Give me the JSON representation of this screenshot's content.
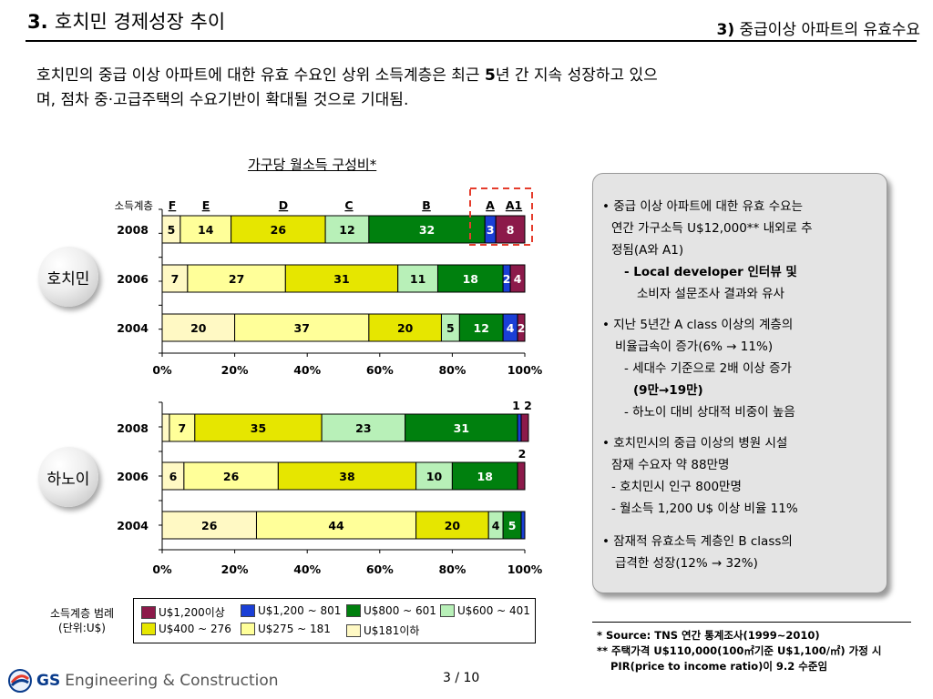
{
  "header": {
    "number": "3.",
    "title": "호치민 경제성장 추이",
    "section_number": "3)",
    "section_title": "중급이상 아파트의 유효수요"
  },
  "headline": {
    "line1_a": "호치민의 중급 이상 아파트에 대한 유효 수요인 상위 소득계층은 최근 ",
    "line1_num": "5",
    "line1_b": "년 간 지속 성장하고 있으",
    "line2": "며, 점차 중·고급주택의 수요기반이 확대될 것으로 기대됨."
  },
  "chart_title": "가구당 월소득 구성비*",
  "income_class_label": "소득계층",
  "class_letters": [
    "F",
    "E",
    "D",
    "C",
    "B",
    "A",
    "A1"
  ],
  "cities": [
    "호치민",
    "하노이"
  ],
  "colors": {
    "F": "#fff9c4",
    "E": "#ffff99",
    "D": "#e6e600",
    "C": "#b8f0b8",
    "B": "#00800e",
    "A": "#1a3fd6",
    "A1": "#8c1a4a",
    "highlight": "#e53c2c"
  },
  "chart_data": [
    {
      "type": "bar",
      "orientation": "horizontal",
      "stacked": true,
      "title": "호치민",
      "categories": [
        "2008",
        "2006",
        "2004"
      ],
      "series": [
        {
          "name": "F",
          "values": [
            5,
            7,
            20
          ]
        },
        {
          "name": "E",
          "values": [
            14,
            27,
            37
          ]
        },
        {
          "name": "D",
          "values": [
            26,
            31,
            20
          ]
        },
        {
          "name": "C",
          "values": [
            12,
            11,
            5
          ]
        },
        {
          "name": "B",
          "values": [
            32,
            18,
            12
          ]
        },
        {
          "name": "A",
          "values": [
            3,
            2,
            4
          ]
        },
        {
          "name": "A1",
          "values": [
            8,
            4,
            2
          ]
        }
      ],
      "xlim": [
        0,
        100
      ],
      "xticks": [
        "0%",
        "20%",
        "40%",
        "60%",
        "80%",
        "100%"
      ]
    },
    {
      "type": "bar",
      "orientation": "horizontal",
      "stacked": true,
      "title": "하노이",
      "categories": [
        "2008",
        "2006",
        "2004"
      ],
      "series": [
        {
          "name": "F",
          "values": [
            2,
            6,
            26
          ]
        },
        {
          "name": "E",
          "values": [
            7,
            26,
            44
          ]
        },
        {
          "name": "D",
          "values": [
            35,
            38,
            20
          ]
        },
        {
          "name": "C",
          "values": [
            23,
            10,
            4
          ]
        },
        {
          "name": "B",
          "values": [
            31,
            18,
            5
          ]
        },
        {
          "name": "A",
          "values": [
            1,
            0,
            1
          ]
        },
        {
          "name": "A1",
          "values": [
            2,
            2,
            0
          ]
        }
      ],
      "value_labels": [
        [
          "",
          "7",
          "35",
          "23",
          "31",
          "",
          ""
        ],
        [
          "6",
          "26",
          "38",
          "10",
          "18",
          "",
          ""
        ],
        [
          "26",
          "44",
          "20",
          "4",
          "5",
          "",
          ""
        ]
      ],
      "annotations": [
        {
          "row": "2008",
          "text": "1 2"
        },
        {
          "row": "2006",
          "text": "2"
        }
      ],
      "xlim": [
        0,
        100
      ],
      "xticks": [
        "0%",
        "20%",
        "40%",
        "60%",
        "80%",
        "100%"
      ]
    }
  ],
  "side_notes": {
    "l1": "• 중급 이상 아파트에 대한 유효 수요는",
    "l2": "연간 가구소득 U$12,000** 내외로 추",
    "l3": "정됨(A와 A1)",
    "l4": "- Local developer 인터뷰 및",
    "l5": "소비자 설문조사 결과와 유사",
    "l6": "•  지난 5년간 A class 이상의 계층의",
    "l7": "비율급속이 증가(6% → 11%)",
    "l8": "- 세대수 기준으로 2배 이상 증가",
    "l9": "(9만→19만)",
    "l10": "- 하노이 대비 상대적 비중이 높음",
    "l11": "• 호치민시의 중급 이상의 병원 시설",
    "l12": "잠재 수요자 약 88만명",
    "l13": "- 호치민시 인구 800만명",
    "l14": "-  월소득 1,200 U$ 이상 비율 11%",
    "l15": "•  잠재적 유효소득 계층인 B class의",
    "l16": "급격한 성장(12% → 32%)"
  },
  "legend": {
    "title1": "소득계층 범례",
    "title2": "(단위:U$)",
    "items": [
      {
        "key": "A1",
        "label": "U$1,200이상"
      },
      {
        "key": "A",
        "label": "U$1,200 ~ 801"
      },
      {
        "key": "B",
        "label": "U$800 ~ 601"
      },
      {
        "key": "C",
        "label": "U$600 ~ 401"
      },
      {
        "key": "D",
        "label": "U$400 ~ 276"
      },
      {
        "key": "E",
        "label": "U$275 ~ 181"
      },
      {
        "key": "F",
        "label": "U$181이하"
      }
    ]
  },
  "source": {
    "s1": "* Source: TNS 연간 통계조사(1999~2010)",
    "s2": "** 주택가격 U$110,000(100㎡기준 U$1,100/㎡) 가정 시",
    "s3": "PIR(price to income ratio)이 9.2 수준임"
  },
  "page": "3 / 10",
  "logo": {
    "gs": "GS",
    "name": "Engineering & Construction"
  }
}
